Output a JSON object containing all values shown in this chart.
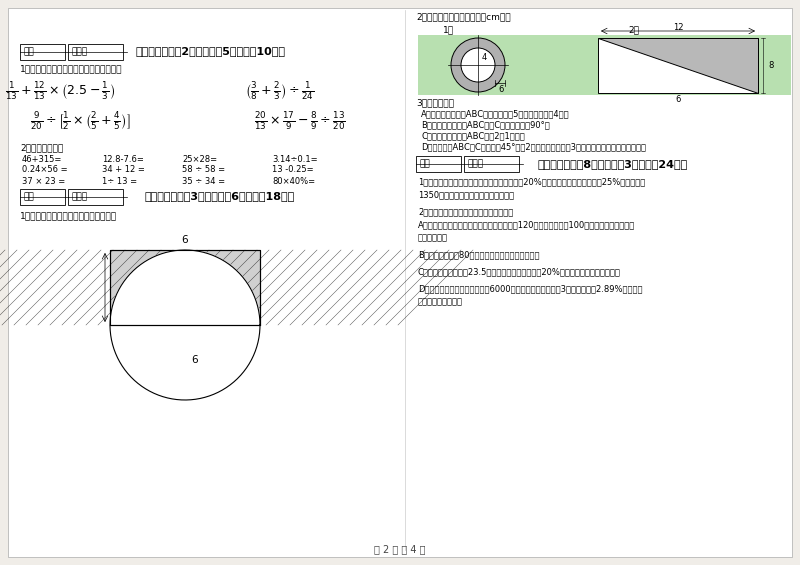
{
  "bg_color": "#f0ede8",
  "page_bg": "#ffffff",
  "green_bg": "#b8e0b0",
  "gray_shade": "#c8c8c8",
  "section4_title": "四、计算题（共2小题，每题5分，共计10分）",
  "section5_title": "五、综合题（共3小题，每题6分，共计18分）",
  "section6_title": "六、应用题（共8小题，每题3分，共计24分）",
  "score_label": "得分",
  "reviewer_label": "评卷人",
  "page_footer": "第 2 页 共 4 页",
  "s4_instr1": "1．脱式计算，能简便计算的要简便计算。",
  "s4_instr2": "2．直接写得数。",
  "s5_instr1": "1．求阴影部分的面积（单位：厘米）。",
  "s6_instr": "2．求阴影部分面积（单位：cm）。",
  "calc_rows": [
    [
      "46+315=",
      "12.8-7.6=",
      "25×28=",
      "3.14÷0.1="
    ],
    [
      "0.24×56 =",
      "34 + 12 =",
      "58 ÷ 58 =",
      "13 -0.25="
    ],
    [
      "37 × 23 =",
      "1÷ 13 =",
      "35 ÷ 34 =",
      "80×40%="
    ]
  ],
  "s3_lines": [
    "3．依次解答。",
    "A．将下面的三角形ABC，先向下平移5格，再向左平移4格。",
    "B．将下面的三角形ABC，绕C点逆时针旋转90°。",
    "C．将下面的三角形ABC，按2：1放大。",
    "D．在三角形ABC的C点南偏东45°方向2厘米处画一个直径3厘米的圆（长度为实际长度）。"
  ],
  "s6_lines": [
    "1．芳芳打一份稿件，上午打了这份稿件总字的20%，下午打了这份稿件总字的25%，一共打了",
    "1350个字，这份稿件一共有多少个字？",
    "",
    "2．下面各题，只列出综合算式，不解答。",
    "A．六一儿童节，同学们做纸花，六年级做了120朵，五年级做了100朵，六年级比五年级多",
    "做百分之几？",
    "",
    "B．六年级有男生80人，比女生多，女生有多少人？",
    "",
    "C．王庄去年总产值为23.5万元，今年比去年增加了20%，今年的产值是多少万元？",
    "",
    "D．小林的妈妈在农业银行买了6000元国家建设债券，定期3年，年利率为2.89%，到期能",
    "可获得利息多少元？"
  ]
}
